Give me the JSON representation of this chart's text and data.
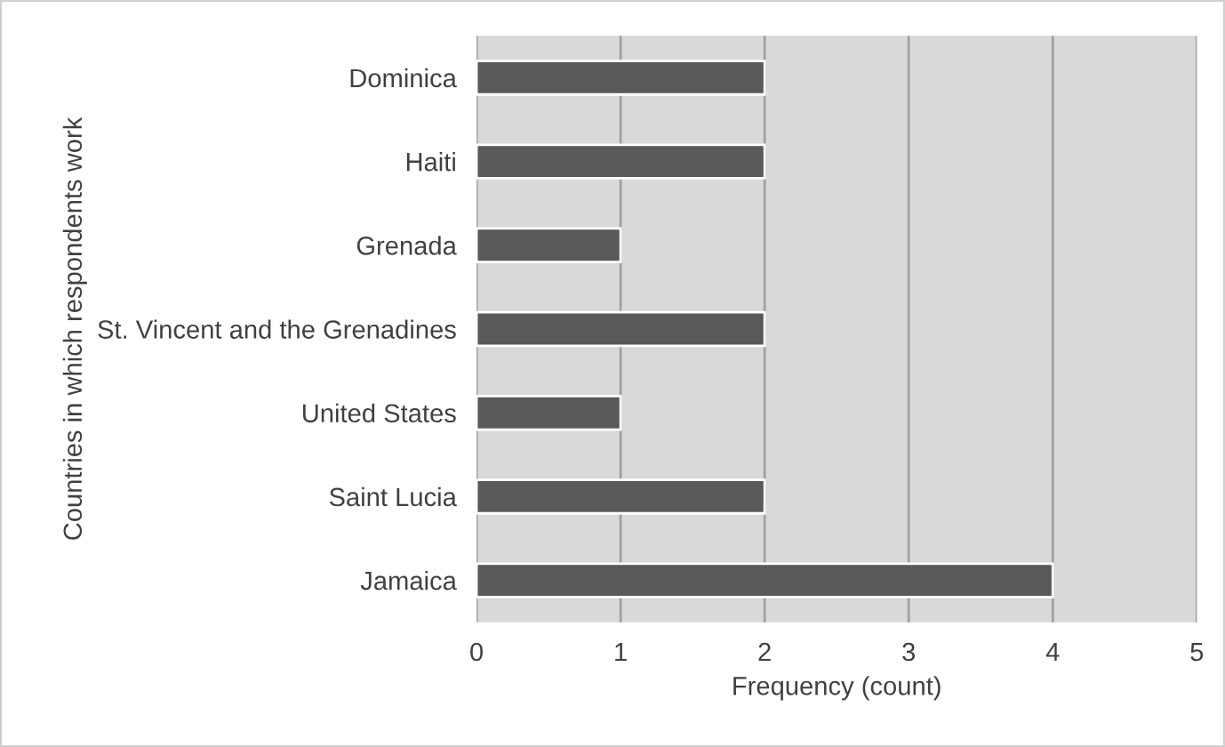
{
  "chart_data": {
    "type": "bar",
    "orientation": "horizontal",
    "xlabel": "Frequency (count)",
    "ylabel": "Countries in which respondents work",
    "categories": [
      "Dominica",
      "Haiti",
      "Grenada",
      "St. Vincent and the Grenadines",
      "United States",
      "Saint Lucia",
      "Jamaica"
    ],
    "values": [
      2,
      2,
      1,
      2,
      1,
      2,
      4
    ],
    "color": "#595959",
    "xlim": [
      0,
      5
    ],
    "xticks": [
      0,
      1,
      2,
      3,
      4,
      5
    ],
    "grid": "x"
  }
}
